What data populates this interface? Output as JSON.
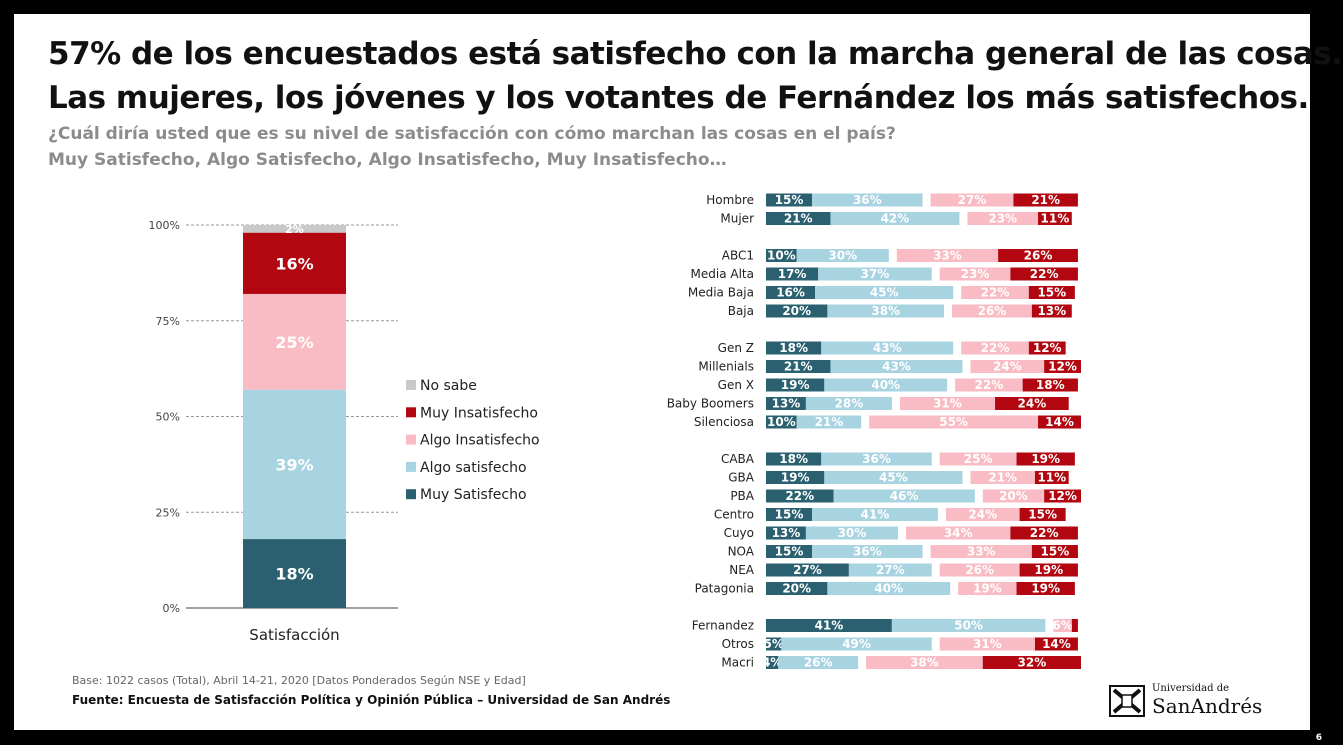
{
  "title_line1": "57% de los encuestados está satisfecho con la marcha general de las cosas.",
  "title_line2": "Las mujeres, los jóvenes y los votantes de Fernández los más satisfechos.",
  "question_line1": "¿Cuál diría usted que es su nivel de satisfacción con cómo marchan las cosas en el país?",
  "question_line2": "Muy Satisfecho, Algo Satisfecho, Algo Insatisfecho, Muy Insatisfecho…",
  "base_note": "Base: 1022 casos (Total), Abril 14-21, 2020 [Datos Ponderados Según NSE y Edad]",
  "source": "Fuente: Encuesta de Satisfacción Política y Opinión Pública – Universidad de San Andrés",
  "logo": {
    "top": "Universidad de",
    "main": "SanAndrés",
    "icon": "crest-icon"
  },
  "page_number": "6",
  "colors": {
    "muy_satisfecho": "#2a6070",
    "algo_satisfecho": "#a8d3e0",
    "algo_insatisfecho": "#f9bcc4",
    "muy_insatisfecho": "#b20710",
    "no_sabe": "#c9c9c9"
  },
  "chart_data": [
    {
      "type": "bar",
      "stacked": true,
      "categories": [
        "Satisfacción"
      ],
      "ylim": [
        0,
        100
      ],
      "y_ticks": [
        "0%",
        "25%",
        "50%",
        "75%",
        "100%"
      ],
      "grid": true,
      "legend_position": "right",
      "series": [
        {
          "name": "Muy Satisfecho",
          "values": [
            18
          ],
          "labels": [
            "18%"
          ]
        },
        {
          "name": "Algo satisfecho",
          "values": [
            39
          ],
          "labels": [
            "39%"
          ]
        },
        {
          "name": "Algo Insatisfecho",
          "values": [
            25
          ],
          "labels": [
            "25%"
          ]
        },
        {
          "name": "Muy Insatisfecho",
          "values": [
            16
          ],
          "labels": [
            "16%"
          ]
        },
        {
          "name": "No sabe",
          "values": [
            2
          ],
          "labels": [
            "2%"
          ]
        }
      ],
      "legend_order": [
        "No sabe",
        "Muy Insatisfecho",
        "Algo Insatisfecho",
        "Algo satisfecho",
        "Muy Satisfecho"
      ]
    },
    {
      "type": "bar",
      "orientation": "horizontal",
      "note": "diverging: satisfecho segments on the left, insatisfecho segments on the right",
      "groups": [
        {
          "rows": [
            {
              "label": "Hombre",
              "values": [
                15,
                36,
                27,
                21
              ]
            },
            {
              "label": "Mujer",
              "values": [
                21,
                42,
                23,
                11
              ]
            }
          ]
        },
        {
          "rows": [
            {
              "label": "ABC1",
              "values": [
                10,
                30,
                33,
                26
              ]
            },
            {
              "label": "Media Alta",
              "values": [
                17,
                37,
                23,
                22
              ]
            },
            {
              "label": "Media Baja",
              "values": [
                16,
                45,
                22,
                15
              ]
            },
            {
              "label": "Baja",
              "values": [
                20,
                38,
                26,
                13
              ]
            }
          ]
        },
        {
          "rows": [
            {
              "label": "Gen Z",
              "values": [
                18,
                43,
                22,
                12
              ]
            },
            {
              "label": "Millenials",
              "values": [
                21,
                43,
                24,
                12
              ]
            },
            {
              "label": "Gen X",
              "values": [
                19,
                40,
                22,
                18
              ]
            },
            {
              "label": "Baby Boomers",
              "values": [
                13,
                28,
                31,
                24
              ]
            },
            {
              "label": "Silenciosa",
              "values": [
                10,
                21,
                55,
                14
              ]
            }
          ]
        },
        {
          "rows": [
            {
              "label": "CABA",
              "values": [
                18,
                36,
                25,
                19
              ]
            },
            {
              "label": "GBA",
              "values": [
                19,
                45,
                21,
                11
              ]
            },
            {
              "label": "PBA",
              "values": [
                22,
                46,
                20,
                12
              ]
            },
            {
              "label": "Centro",
              "values": [
                15,
                41,
                24,
                15
              ]
            },
            {
              "label": "Cuyo",
              "values": [
                13,
                30,
                34,
                22
              ]
            },
            {
              "label": "NOA",
              "values": [
                15,
                36,
                33,
                15
              ]
            },
            {
              "label": "NEA",
              "values": [
                27,
                27,
                26,
                19
              ]
            },
            {
              "label": "Patagonia",
              "values": [
                20,
                40,
                19,
                19
              ]
            }
          ]
        },
        {
          "rows": [
            {
              "label": "Fernandez",
              "values": [
                41,
                50,
                6,
                2
              ]
            },
            {
              "label": "Otros",
              "values": [
                5,
                49,
                31,
                14
              ]
            },
            {
              "label": "Macri",
              "values": [
                4,
                26,
                38,
                32
              ]
            }
          ]
        }
      ],
      "series": [
        "Muy Satisfecho",
        "Algo satisfecho",
        "Algo Insatisfecho",
        "Muy Insatisfecho"
      ]
    }
  ]
}
